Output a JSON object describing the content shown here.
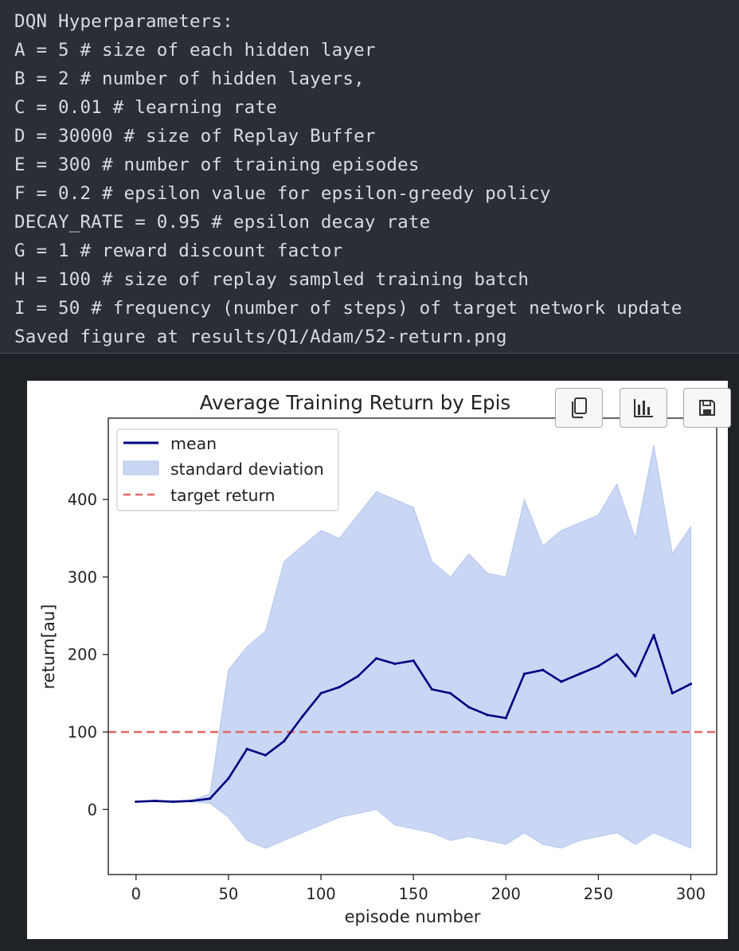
{
  "output": {
    "lines": [
      "DQN Hyperparameters:",
      "A = 5 # size of each hidden layer",
      "B = 2 # number of hidden layers,",
      "C = 0.01 # learning rate",
      "D = 30000 # size of Replay Buffer",
      "E = 300 # number of training episodes",
      "F = 0.2 # epsilon value for epsilon-greedy policy",
      "DECAY_RATE = 0.95 # epsilon decay rate",
      "G = 1 # reward discount factor",
      "H = 100 # size of replay sampled training batch",
      "I = 50 # frequency (number of steps) of target network update",
      "Saved figure at results/Q1/Adam/52-return.png"
    ]
  },
  "toolbar": {
    "buttons": [
      {
        "icon": "copy-icon"
      },
      {
        "icon": "bar-chart-icon"
      },
      {
        "icon": "save-icon"
      }
    ]
  },
  "chart_data": {
    "type": "line",
    "title": "Average Training Return by Epis",
    "xlabel": "episode number",
    "ylabel": "return[au]",
    "xlim": [
      -15,
      314
    ],
    "ylim": [
      -84,
      505
    ],
    "xticks": [
      0,
      50,
      100,
      150,
      200,
      250,
      300
    ],
    "yticks": [
      0,
      100,
      200,
      300,
      400
    ],
    "grid": false,
    "legend_position": "upper-left",
    "colors": {
      "mean": "#000080",
      "std_fill": "#c9d6f4",
      "std_edge": "#b4c6ee",
      "target": "#e06666"
    },
    "legend": [
      "mean",
      "standard deviation",
      "target return"
    ],
    "target_return": 100,
    "episodes_step": 10,
    "mean": [
      10,
      11,
      10,
      11,
      14,
      40,
      78,
      70,
      88,
      120,
      150,
      158,
      172,
      195,
      188,
      192,
      155,
      150,
      132,
      122,
      118,
      175,
      180,
      165,
      175,
      185,
      200,
      172,
      225,
      150,
      162
    ],
    "std_upper": [
      10,
      12,
      11,
      12,
      20,
      180,
      210,
      230,
      320,
      340,
      360,
      350,
      380,
      410,
      400,
      390,
      320,
      300,
      330,
      305,
      300,
      400,
      340,
      360,
      370,
      380,
      420,
      350,
      470,
      330,
      365
    ],
    "std_lower": [
      10,
      10,
      9,
      10,
      8,
      -10,
      -40,
      -50,
      -40,
      -30,
      -20,
      -10,
      -5,
      0,
      -20,
      -25,
      -30,
      -40,
      -35,
      -40,
      -45,
      -30,
      -45,
      -50,
      -40,
      -35,
      -30,
      -45,
      -30,
      -40,
      -50
    ]
  }
}
